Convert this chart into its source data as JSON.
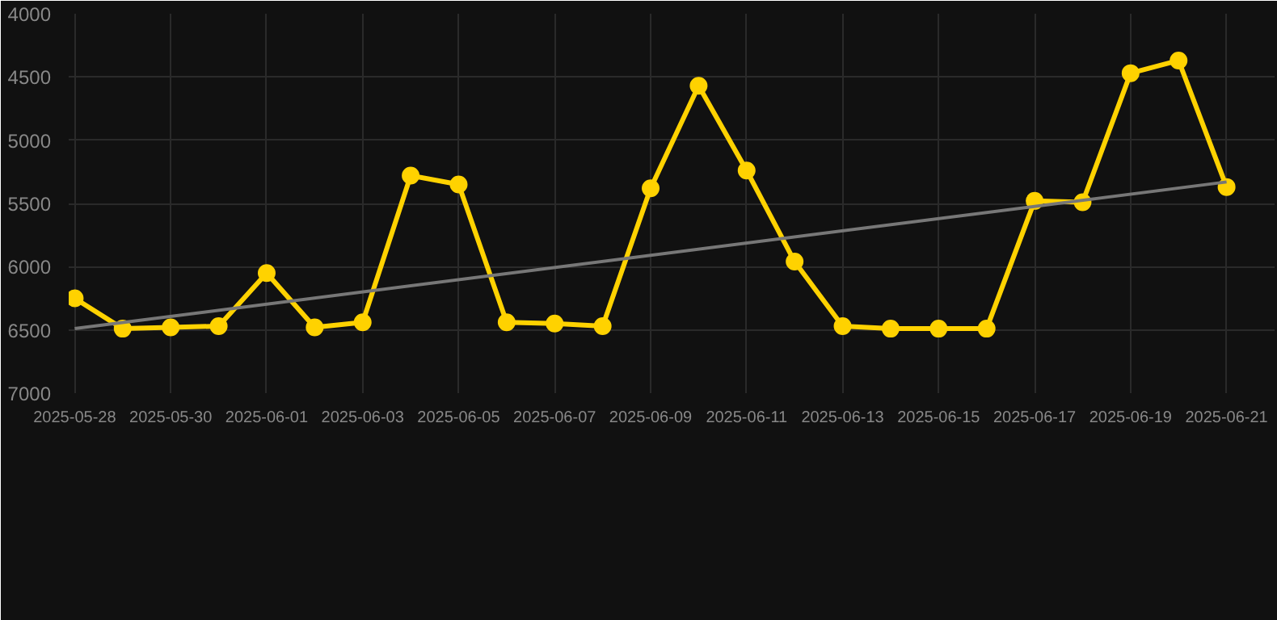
{
  "chart_data": {
    "type": "line",
    "marker": "circle",
    "line_style": "solid",
    "grid": true,
    "x": [
      "2025-05-28",
      "2025-05-29",
      "2025-05-30",
      "2025-05-31",
      "2025-06-01",
      "2025-06-02",
      "2025-06-03",
      "2025-06-04",
      "2025-06-05",
      "2025-06-06",
      "2025-06-07",
      "2025-06-08",
      "2025-06-09",
      "2025-06-10",
      "2025-06-11",
      "2025-06-12",
      "2025-06-13",
      "2025-06-14",
      "2025-06-15",
      "2025-06-16",
      "2025-06-17",
      "2025-06-18",
      "2025-06-19",
      "2025-06-20",
      "2025-06-21"
    ],
    "series": [
      {
        "color": "#ffd200",
        "values": [
          6250,
          6490,
          6480,
          6470,
          6050,
          6480,
          6440,
          5280,
          5350,
          6440,
          6450,
          6470,
          5380,
          4570,
          5240,
          5960,
          6470,
          6490,
          6490,
          6490,
          5480,
          5490,
          4470,
          4370,
          5370
        ]
      },
      {
        "type": "line",
        "marker": "none",
        "color": "#777777",
        "x": [
          "2025-05-28",
          "2025-06-21"
        ],
        "values": [
          6490,
          5330
        ]
      }
    ],
    "xlim": [
      "2025-05-27T21:00",
      "2025-06-22T00:00"
    ],
    "xticks": [
      "2025-05-28",
      "2025-05-30",
      "2025-06-01",
      "2025-06-03",
      "2025-06-05",
      "2025-06-07",
      "2025-06-09",
      "2025-06-11",
      "2025-06-13",
      "2025-06-15",
      "2025-06-17",
      "2025-06-19",
      "2025-06-21"
    ],
    "ylim": [
      7000,
      4000
    ],
    "yticks": [
      4000,
      4500,
      5000,
      5500,
      6000,
      6500,
      7000
    ]
  }
}
